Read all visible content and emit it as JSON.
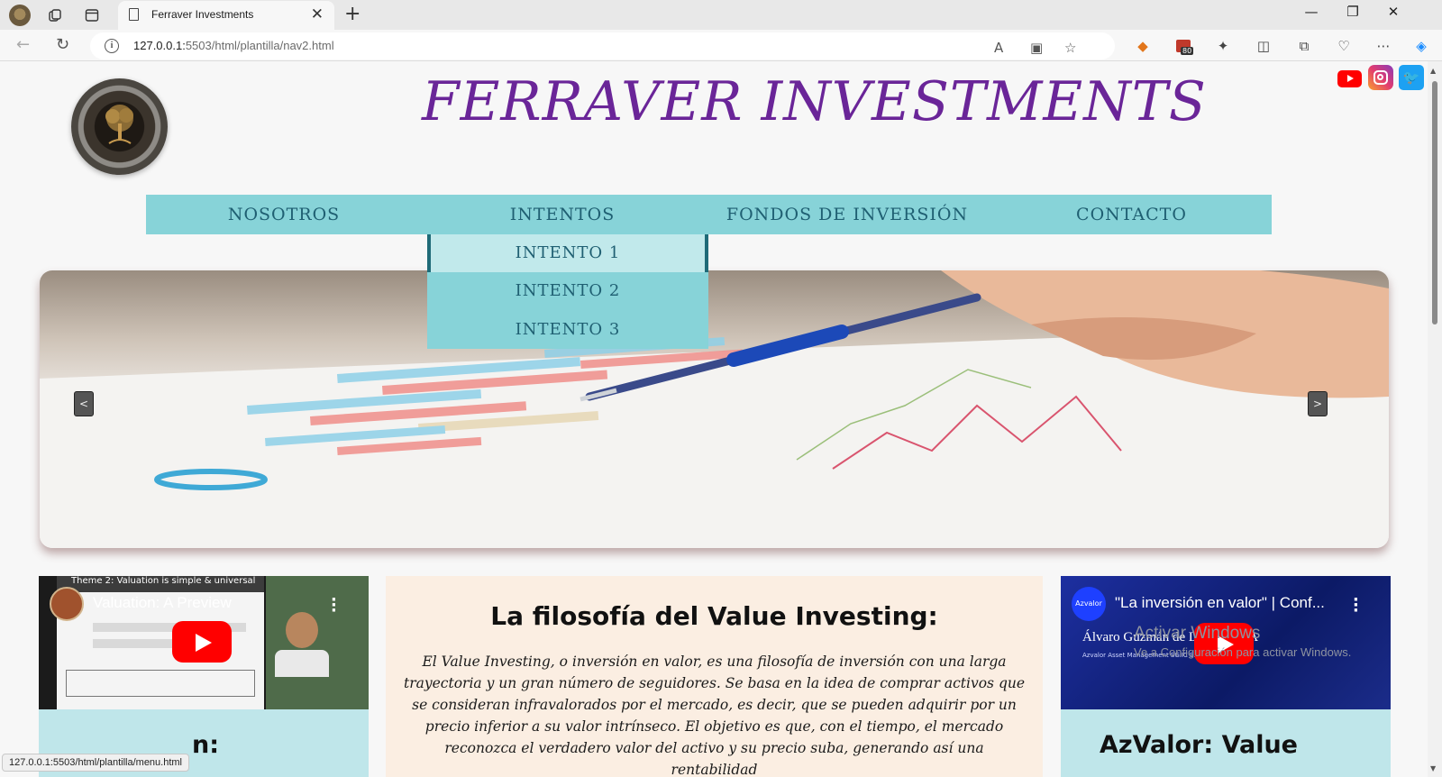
{
  "browser": {
    "tab_title": "Ferraver Investments",
    "url_host": "127.0.0.1:",
    "url_rest": "5503/html/plantilla/nav2.html",
    "extension_badge": "80"
  },
  "site": {
    "title": "FERRAVER INVESTMENTS",
    "nav": [
      "NOSOTROS",
      "INTENTOS",
      "FONDOS DE INVERSIÓN",
      "CONTACTO"
    ],
    "dropdown": [
      "INTENTO 1",
      "INTENTO 2",
      "INTENTO 3"
    ],
    "slider_prev": "<",
    "slider_next": ">"
  },
  "videos": {
    "left_title": "Valuation: A Preview",
    "left_top_caption": "Theme 2: Valuation is simple & universal",
    "right_title": "\"La inversión en valor\" | Conf...",
    "right_sub": "Álvaro Guzmán de Lázaro, CFA",
    "right_small": "Azvalor Asset Management SGIIC S.A."
  },
  "article": {
    "title": "La filosofía del Value Investing:",
    "body": "El Value Investing, o inversión en valor, es una filosofía de inversión con una larga trayectoria y un gran número de seguidores. Se basa en la idea de comprar activos que se consideran infravalorados por el mercado, es decir, que se pueden adquirir por un precio inferior a su valor intrínseco. El objetivo es que, con el tiempo, el mercado reconozca el verdadero valor del activo y su precio suba, generando así una rentabilidad"
  },
  "cards": {
    "left_title": "n:",
    "right_title": "AzValor: Value"
  },
  "watermark": {
    "line1": "Activar Windows",
    "line2": "Ve a Configuración para activar Windows."
  },
  "status_url": "127.0.0.1:5503/html/plantilla/menu.html"
}
